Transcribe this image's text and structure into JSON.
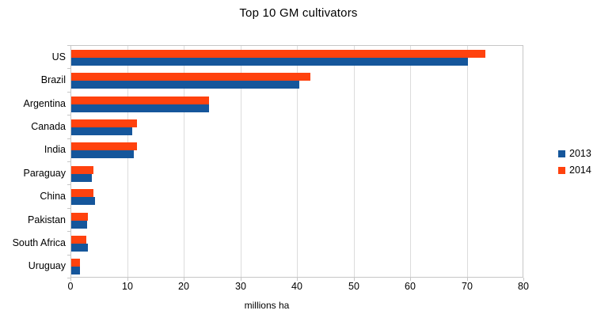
{
  "chart_data": {
    "type": "bar",
    "orientation": "horizontal",
    "title": "Top 10 GM cultivators",
    "xlabel": "millions ha",
    "categories": [
      "US",
      "Brazil",
      "Argentina",
      "Canada",
      "India",
      "Paraguay",
      "China",
      "Pakistan",
      "South Africa",
      "Uruguay"
    ],
    "series": [
      {
        "name": "2013",
        "color": "#15569b",
        "values": [
          70.1,
          40.3,
          24.4,
          10.8,
          11.0,
          3.6,
          4.2,
          2.8,
          2.9,
          1.5
        ]
      },
      {
        "name": "2014",
        "color": "#ff420e",
        "values": [
          73.1,
          42.2,
          24.3,
          11.6,
          11.6,
          3.9,
          3.9,
          2.9,
          2.7,
          1.6
        ]
      }
    ],
    "series_draw_order_note": "2014 bar drawn above 2013 bar within each category group",
    "xlim": [
      0,
      80
    ],
    "xticks": [
      0,
      10,
      20,
      30,
      40,
      50,
      60,
      70,
      80
    ],
    "grid": true,
    "gridline_color": "#dcdcdc",
    "plot_border_color": "#c6c6c6",
    "legend_position": "right"
  }
}
